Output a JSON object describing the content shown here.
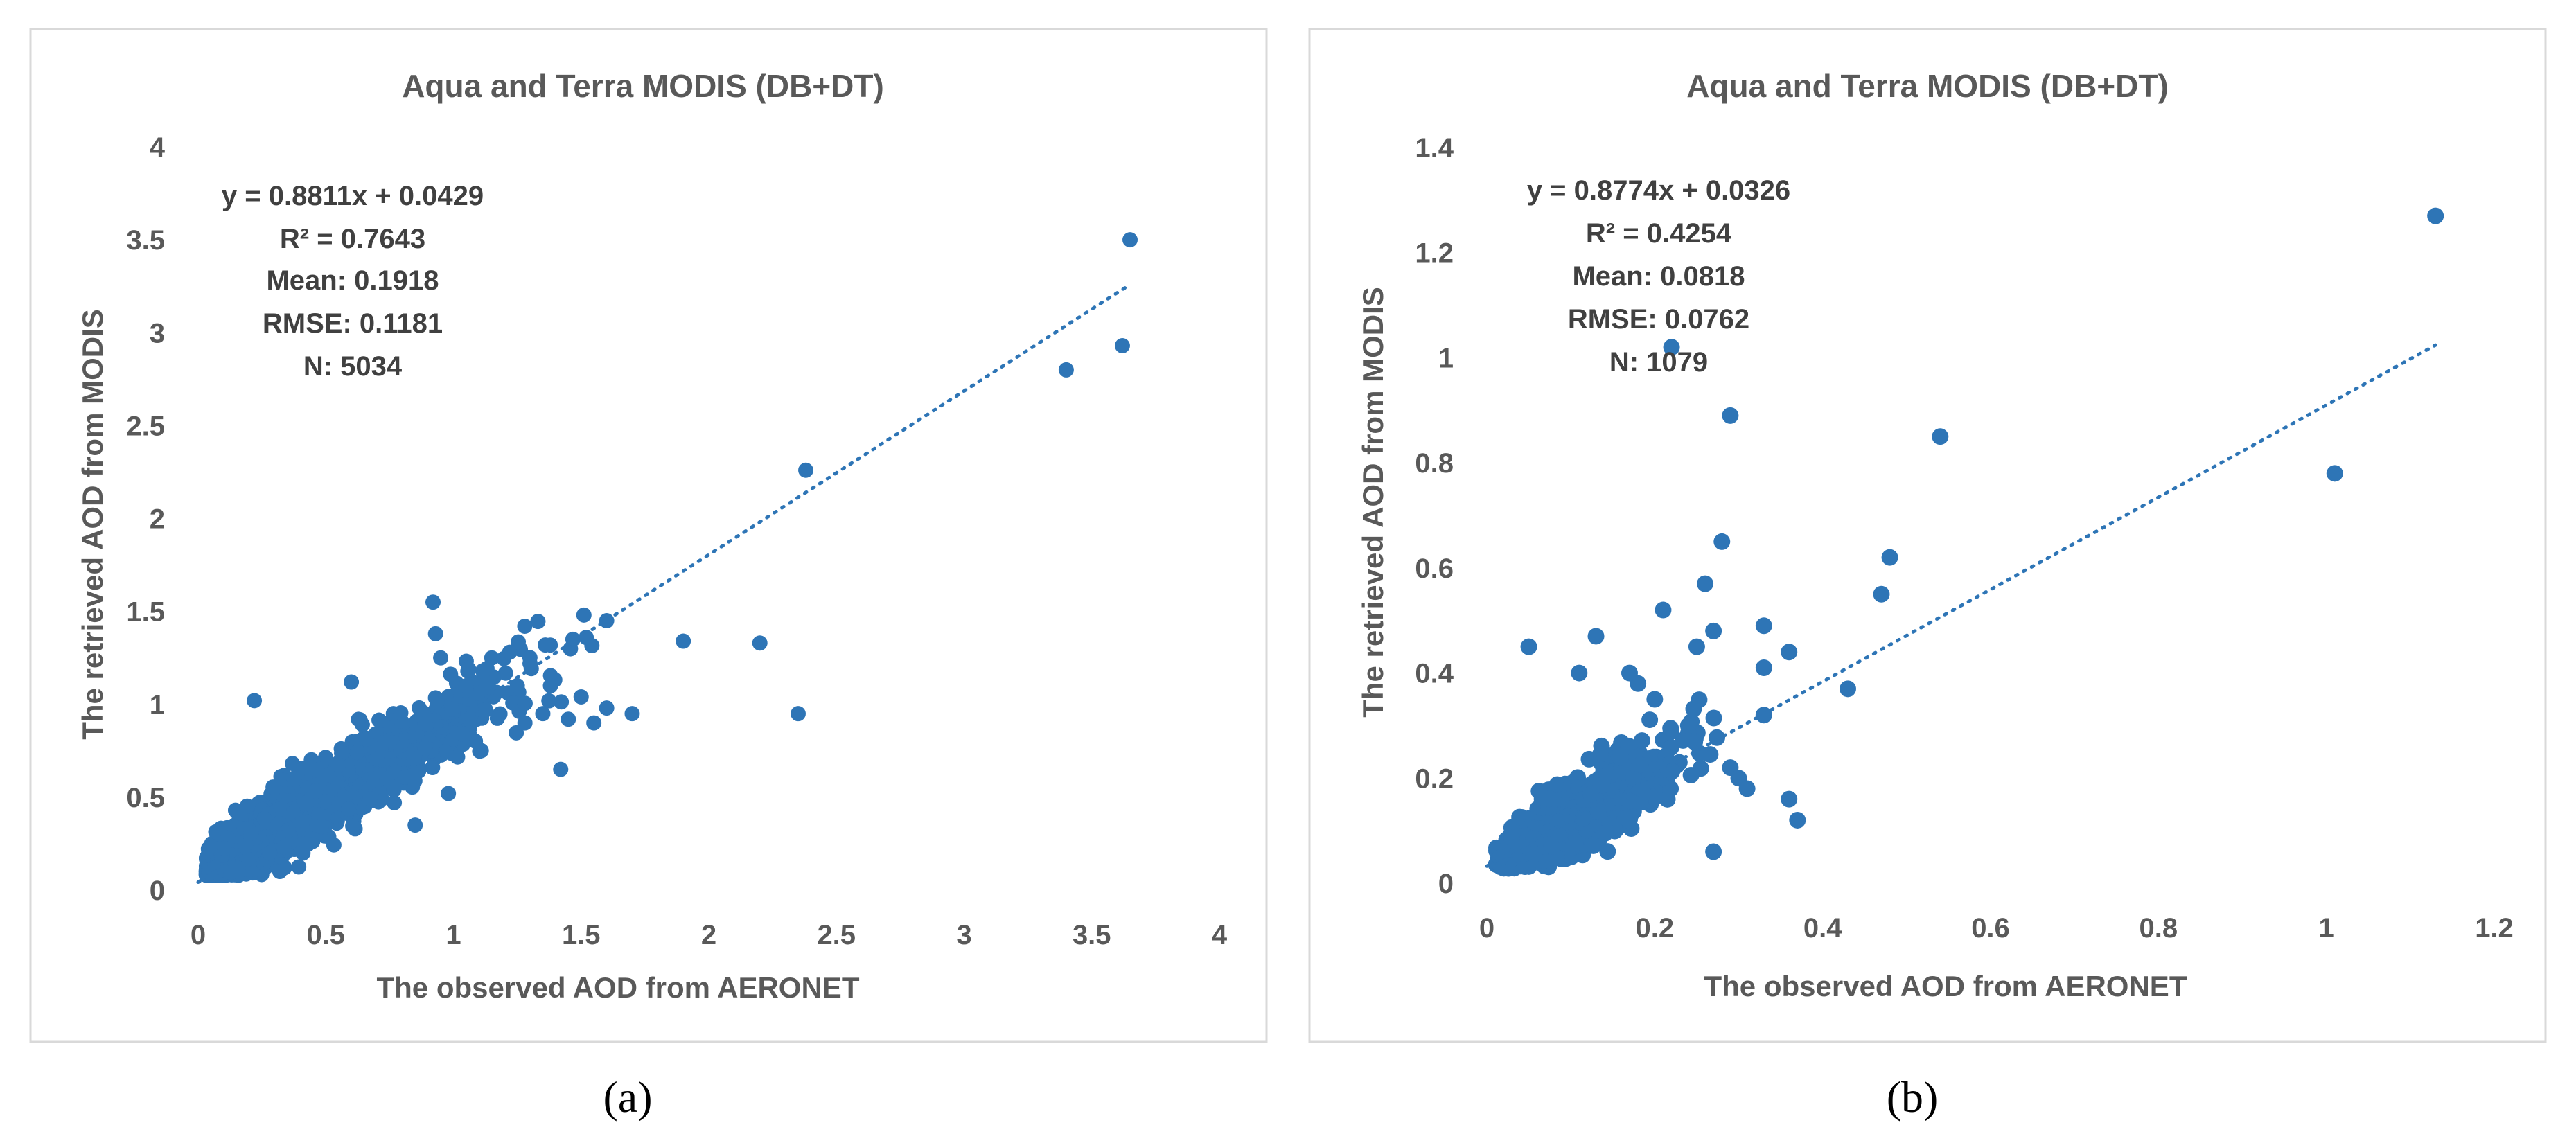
{
  "colors": {
    "marker": "#2e75b6",
    "trendline": "#2e75b6",
    "text": "#595959",
    "frame": "#d9d9d9"
  },
  "panel_labels": [
    "(a)",
    "(b)"
  ],
  "chart_data": [
    {
      "type": "scatter",
      "title": "Aqua and Terra MODIS (DB+DT)",
      "xlabel": "The observed AOD from AERONET",
      "ylabel": "The retrieved AOD from MODIS",
      "xlim": [
        0,
        4
      ],
      "ylim": [
        0,
        4
      ],
      "xticks": [
        "0",
        "0.5",
        "1",
        "1.5",
        "2",
        "2.5",
        "3",
        "3.5",
        "4"
      ],
      "yticks": [
        "0",
        "0.5",
        "1",
        "1.5",
        "2",
        "2.5",
        "3",
        "3.5",
        "4"
      ],
      "grid": false,
      "trendline": {
        "slope": 0.8811,
        "intercept": 0.0429,
        "x_range": [
          0.0,
          3.65
        ],
        "style": "dotted"
      },
      "stats": [
        "y = 0.8811x + 0.0429",
        "R² = 0.7643",
        "Mean: 0.1918",
        "RMSE: 0.1181",
        "N: 5034"
      ],
      "outliers": [
        [
          3.65,
          3.5
        ],
        [
          3.62,
          2.93
        ],
        [
          3.4,
          2.8
        ],
        [
          2.38,
          2.26
        ],
        [
          2.35,
          0.95
        ],
        [
          2.2,
          1.33
        ],
        [
          1.9,
          1.34
        ],
        [
          1.7,
          0.95
        ],
        [
          1.6,
          1.45
        ],
        [
          1.6,
          0.98
        ],
        [
          1.55,
          0.9
        ],
        [
          1.52,
          1.36
        ],
        [
          1.5,
          1.04
        ],
        [
          1.42,
          0.65
        ],
        [
          1.35,
          0.95
        ],
        [
          1.3,
          1.22
        ],
        [
          1.28,
          0.9
        ],
        [
          1.22,
          1.28
        ],
        [
          1.15,
          1.25
        ],
        [
          0.92,
          1.55
        ],
        [
          0.93,
          1.38
        ],
        [
          0.95,
          1.25
        ],
        [
          0.22,
          1.02
        ],
        [
          0.6,
          1.12
        ],
        [
          0.98,
          0.52
        ],
        [
          0.85,
          0.35
        ],
        [
          1.05,
          1.1
        ],
        [
          1.45,
          0.92
        ],
        [
          1.38,
          1.1
        ],
        [
          1.25,
          1.1
        ]
      ],
      "clusters": [
        {
          "center": [
            0.06,
            0.09
          ],
          "spread": [
            0.05,
            0.06
          ],
          "count": 1400
        },
        {
          "center": [
            0.15,
            0.18
          ],
          "spread": [
            0.08,
            0.09
          ],
          "count": 1500
        },
        {
          "center": [
            0.35,
            0.38
          ],
          "spread": [
            0.15,
            0.14
          ],
          "count": 1200
        },
        {
          "center": [
            0.65,
            0.62
          ],
          "spread": [
            0.2,
            0.18
          ],
          "count": 500
        },
        {
          "center": [
            1.0,
            0.9
          ],
          "spread": [
            0.22,
            0.18
          ],
          "count": 150
        }
      ]
    },
    {
      "type": "scatter",
      "title": "Aqua and Terra MODIS (DB+DT)",
      "xlabel": "The observed AOD from AERONET",
      "ylabel": "The retrieved AOD from MODIS",
      "xlim": [
        0,
        1.2
      ],
      "ylim": [
        0,
        1.4
      ],
      "xticks": [
        "0",
        "0.2",
        "0.4",
        "0.6",
        "0.8",
        "1",
        "1.2"
      ],
      "yticks": [
        "0",
        "0.2",
        "0.4",
        "0.6",
        "0.8",
        "1",
        "1.2",
        "1.4"
      ],
      "grid": false,
      "trendline": {
        "slope": 0.8774,
        "intercept": 0.0326,
        "x_range": [
          0.0,
          1.13
        ],
        "style": "dotted"
      },
      "stats": [
        "y = 0.8774x + 0.0326",
        "R² = 0.4254",
        "Mean: 0.0818",
        "RMSE: 0.0762",
        "N: 1079"
      ],
      "outliers": [
        [
          1.13,
          1.27
        ],
        [
          1.01,
          0.78
        ],
        [
          0.54,
          0.85
        ],
        [
          0.48,
          0.62
        ],
        [
          0.47,
          0.55
        ],
        [
          0.43,
          0.37
        ],
        [
          0.37,
          0.12
        ],
        [
          0.36,
          0.44
        ],
        [
          0.36,
          0.16
        ],
        [
          0.33,
          0.49
        ],
        [
          0.33,
          0.41
        ],
        [
          0.33,
          0.32
        ],
        [
          0.29,
          0.89
        ],
        [
          0.28,
          0.65
        ],
        [
          0.27,
          0.48
        ],
        [
          0.26,
          0.57
        ],
        [
          0.25,
          0.45
        ],
        [
          0.27,
          0.06
        ],
        [
          0.29,
          0.22
        ],
        [
          0.22,
          1.02
        ],
        [
          0.21,
          0.52
        ],
        [
          0.2,
          0.35
        ],
        [
          0.18,
          0.38
        ],
        [
          0.17,
          0.4
        ],
        [
          0.13,
          0.47
        ],
        [
          0.11,
          0.4
        ],
        [
          0.05,
          0.45
        ],
        [
          0.3,
          0.2
        ],
        [
          0.24,
          0.3
        ],
        [
          0.31,
          0.18
        ]
      ],
      "clusters": [
        {
          "center": [
            0.1,
            0.12
          ],
          "spread": [
            0.04,
            0.05
          ],
          "count": 900
        },
        {
          "center": [
            0.16,
            0.18
          ],
          "spread": [
            0.05,
            0.07
          ],
          "count": 150
        }
      ]
    }
  ]
}
